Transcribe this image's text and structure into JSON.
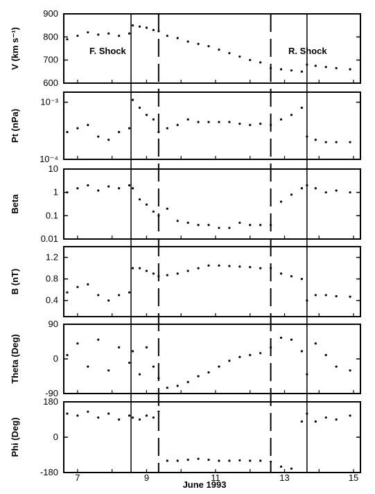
{
  "chart_data": {
    "type": "scatter",
    "xlabel": "June 1993",
    "x_ticks": [
      "7",
      "9",
      "11",
      "13",
      "15"
    ],
    "xlim": [
      6.6,
      15.2
    ],
    "annotations": [
      "F. Shock",
      "R. Shock"
    ],
    "event_lines": [
      {
        "kind": "solid",
        "x": 8.55
      },
      {
        "kind": "dashed",
        "x": 9.35
      },
      {
        "kind": "dashed",
        "x": 12.6
      },
      {
        "kind": "solid",
        "x": 13.65
      }
    ],
    "panels": [
      {
        "ylabel": "V (km s⁻¹)",
        "scale": "linear",
        "ylim": [
          600,
          900
        ],
        "y_ticks": [
          "600",
          "700",
          "800",
          "900"
        ],
        "y_tick_values": [
          600,
          700,
          800,
          900
        ],
        "series": [
          {
            "x": [
              6.7,
              7.0,
              7.3,
              7.6,
              7.9,
              8.2,
              8.5,
              8.6,
              8.8,
              9.0,
              9.2,
              9.35,
              9.6,
              9.9,
              10.2,
              10.5,
              10.8,
              11.1,
              11.4,
              11.7,
              12.0,
              12.3,
              12.6,
              12.9,
              13.2,
              13.5,
              13.65,
              13.9,
              14.2,
              14.5,
              14.9
            ],
            "y": [
              790,
              805,
              820,
              810,
              815,
              805,
              815,
              850,
              845,
              840,
              830,
              825,
              805,
              795,
              780,
              770,
              760,
              745,
              730,
              715,
              700,
              690,
              665,
              660,
              655,
              650,
              680,
              675,
              670,
              665,
              660
            ]
          }
        ]
      },
      {
        "ylabel": "Pt (nPa)",
        "scale": "log",
        "ylim": [
          0.0001,
          0.0015
        ],
        "y_ticks": [
          "10⁻⁴",
          "10⁻³"
        ],
        "y_tick_values": [
          0.0001,
          0.001
        ],
        "series": [
          {
            "x": [
              6.7,
              7.0,
              7.3,
              7.6,
              7.9,
              8.2,
              8.5,
              8.6,
              8.8,
              9.0,
              9.2,
              9.35,
              9.6,
              9.9,
              10.2,
              10.5,
              10.8,
              11.1,
              11.4,
              11.7,
              12.0,
              12.3,
              12.6,
              12.9,
              13.2,
              13.5,
              13.65,
              13.9,
              14.2,
              14.5,
              14.9
            ],
            "y": [
              0.0003,
              0.00035,
              0.0004,
              0.00025,
              0.00022,
              0.0003,
              0.00035,
              0.0011,
              0.0008,
              0.0006,
              0.0005,
              0.0003,
              0.00035,
              0.0004,
              0.0005,
              0.00045,
              0.00045,
              0.00045,
              0.00045,
              0.00042,
              0.0004,
              0.00042,
              0.0004,
              0.0005,
              0.0006,
              0.0008,
              0.00025,
              0.00022,
              0.0002,
              0.0002,
              0.0002
            ]
          }
        ]
      },
      {
        "ylabel": "Beta",
        "scale": "log",
        "ylim": [
          0.01,
          10
        ],
        "y_ticks": [
          "0.01",
          "0.1",
          "1",
          "10"
        ],
        "y_tick_values": [
          0.01,
          0.1,
          1,
          10
        ],
        "series": [
          {
            "x": [
              6.7,
              7.0,
              7.3,
              7.6,
              7.9,
              8.2,
              8.5,
              8.6,
              8.8,
              9.0,
              9.2,
              9.35,
              9.6,
              9.9,
              10.2,
              10.5,
              10.8,
              11.1,
              11.4,
              11.7,
              12.0,
              12.3,
              12.6,
              12.9,
              13.2,
              13.5,
              13.65,
              13.9,
              14.2,
              14.5,
              14.9
            ],
            "y": [
              1.0,
              1.5,
              2.0,
              1.2,
              1.8,
              1.5,
              2.0,
              1.5,
              0.5,
              0.3,
              0.15,
              0.1,
              0.2,
              0.06,
              0.05,
              0.04,
              0.04,
              0.03,
              0.03,
              0.05,
              0.04,
              0.04,
              0.04,
              0.4,
              0.8,
              1.5,
              2.0,
              1.5,
              1.0,
              1.2,
              1.0
            ]
          }
        ]
      },
      {
        "ylabel": "B (nT)",
        "scale": "linear",
        "ylim": [
          0.1,
          1.4
        ],
        "y_ticks": [
          "0.4",
          "0.8",
          "1.2"
        ],
        "y_tick_values": [
          0.4,
          0.8,
          1.2
        ],
        "series": [
          {
            "x": [
              6.7,
              7.0,
              7.3,
              7.6,
              7.9,
              8.2,
              8.5,
              8.6,
              8.8,
              9.0,
              9.2,
              9.35,
              9.6,
              9.9,
              10.2,
              10.5,
              10.8,
              11.1,
              11.4,
              11.7,
              12.0,
              12.3,
              12.6,
              12.9,
              13.2,
              13.5,
              13.65,
              13.9,
              14.2,
              14.5,
              14.9
            ],
            "y": [
              0.55,
              0.65,
              0.7,
              0.5,
              0.4,
              0.5,
              0.55,
              1.0,
              1.0,
              0.95,
              0.9,
              0.85,
              0.87,
              0.9,
              0.95,
              1.0,
              1.05,
              1.05,
              1.04,
              1.03,
              1.02,
              1.0,
              1.0,
              0.9,
              0.85,
              0.8,
              0.4,
              0.5,
              0.5,
              0.48,
              0.47
            ]
          }
        ]
      },
      {
        "ylabel": "Theta (Deg)",
        "scale": "linear",
        "ylim": [
          -90,
          90
        ],
        "y_ticks": [
          "-90",
          "0",
          "90"
        ],
        "y_tick_values": [
          -90,
          0,
          90
        ],
        "series": [
          {
            "x": [
              6.7,
              7.0,
              7.3,
              7.6,
              7.9,
              8.2,
              8.5,
              8.6,
              8.8,
              9.0,
              9.2,
              9.35,
              9.6,
              9.9,
              10.2,
              10.5,
              10.8,
              11.1,
              11.4,
              11.7,
              12.0,
              12.3,
              12.6,
              12.9,
              13.2,
              13.5,
              13.65,
              13.9,
              14.2,
              14.5,
              14.9
            ],
            "y": [
              10,
              40,
              -20,
              50,
              -30,
              30,
              -10,
              20,
              -40,
              30,
              -20,
              -50,
              -75,
              -70,
              -60,
              -45,
              -35,
              -20,
              -5,
              5,
              10,
              15,
              30,
              55,
              50,
              20,
              -40,
              40,
              10,
              -20,
              -30
            ]
          }
        ]
      },
      {
        "ylabel": "Phi (Deg)",
        "scale": "linear",
        "ylim": [
          -180,
          180
        ],
        "y_ticks": [
          "-180",
          "0",
          "180"
        ],
        "y_tick_values": [
          -180,
          0,
          180
        ],
        "series": [
          {
            "x": [
              6.7,
              7.0,
              7.3,
              7.6,
              7.9,
              8.2,
              8.5,
              8.6,
              8.8,
              9.0,
              9.2,
              9.35,
              9.6,
              9.9,
              10.2,
              10.5,
              10.8,
              11.1,
              11.4,
              11.7,
              12.0,
              12.3,
              12.6,
              12.9,
              13.2,
              13.5,
              13.65,
              13.9,
              14.2,
              14.5,
              14.9
            ],
            "y": [
              120,
              110,
              130,
              100,
              120,
              90,
              110,
              100,
              90,
              110,
              100,
              130,
              -120,
              -120,
              -115,
              -110,
              -115,
              -120,
              -120,
              -118,
              -120,
              -120,
              -125,
              -150,
              -160,
              80,
              120,
              80,
              100,
              90,
              110
            ]
          }
        ]
      }
    ]
  }
}
